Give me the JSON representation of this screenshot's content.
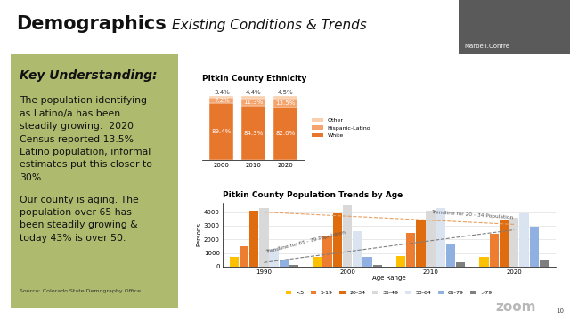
{
  "header": {
    "title": "Demographics",
    "subtitle": "Existing Conditions & Trends"
  },
  "key_understanding": {
    "heading": "Key Understanding:",
    "paragraphs": [
      [
        "The population identifying",
        "as Latino/a has been",
        "steadily growing.  2020",
        "Census reported 13.5%",
        "Latino population, informal",
        "estimates put this closer to",
        "30%."
      ],
      [
        "Our county is aging. The",
        "population over 65 has",
        "been steadily growing &",
        "today 43% is over 50."
      ]
    ],
    "source": "Source: Colorado State Demography Office"
  },
  "video_tile": {
    "label": "Marbell.Confre"
  },
  "watermark": "zoom",
  "page_number": "10",
  "chart_data": [
    {
      "type": "bar",
      "stacked": true,
      "title": "Pitkin County Ethnicity",
      "categories": [
        "2000",
        "2010",
        "2020"
      ],
      "series": [
        {
          "name": "White",
          "color": "#e8772e",
          "values": [
            89.4,
            84.3,
            82.0
          ],
          "value_labels": [
            "89.4%",
            "84.3%",
            "82.0%"
          ]
        },
        {
          "name": "Hispanic-Latino",
          "color": "#f4a46c",
          "values": [
            7.2,
            11.3,
            13.5
          ],
          "value_labels": [
            "7.2%",
            "11.3%",
            "13.5%"
          ]
        },
        {
          "name": "Other",
          "color": "#f9cfae",
          "values": [
            3.4,
            4.4,
            4.5
          ],
          "value_labels": [
            "3.4%",
            "4.4%",
            "4.5%"
          ]
        }
      ],
      "ylim": [
        0,
        100
      ],
      "data_labels": true,
      "legend": "right",
      "tick_labels": "x"
    },
    {
      "type": "bar",
      "title": "Pitkin County Population Trends by Age",
      "x_label": "Age Range",
      "y_label": "Persons",
      "categories": [
        "1990",
        "2000",
        "2010",
        "2020"
      ],
      "series": [
        {
          "name": "<5",
          "color": "#ffc000",
          "values": [
            700,
            700,
            800,
            700
          ]
        },
        {
          "name": "5-19",
          "color": "#ed7d31",
          "values": [
            1500,
            2200,
            2500,
            2400
          ]
        },
        {
          "name": "20-34",
          "color": "#e06c10",
          "values": [
            4100,
            3900,
            3400,
            3400
          ]
        },
        {
          "name": "35-49",
          "color": "#d9d9d9",
          "values": [
            4300,
            4500,
            4100,
            3600
          ]
        },
        {
          "name": "50-64",
          "color": "#dae3f0",
          "values": [
            1300,
            2600,
            4300,
            3900
          ]
        },
        {
          "name": "65-79",
          "color": "#8fb0e0",
          "values": [
            500,
            700,
            1700,
            2900
          ]
        },
        {
          "name": ">79",
          "color": "#7f7f7f",
          "values": [
            100,
            150,
            300,
            450
          ]
        }
      ],
      "trendlines": [
        {
          "label": "Trendline for 20 - 34 Population",
          "color": "#e8a060",
          "line_style": "dashed",
          "values": [
            4000,
            3700,
            3400,
            3100
          ]
        },
        {
          "label": "Trendline for 65 - 79 Population",
          "color": "#7f7f7f",
          "line_style": "dashed",
          "values": [
            300,
            1100,
            1900,
            2700
          ]
        }
      ],
      "ylim": [
        0,
        4700
      ],
      "yticks": [
        0,
        1000,
        2000,
        3000,
        4000
      ],
      "grid": true,
      "legend": "bottom"
    }
  ]
}
